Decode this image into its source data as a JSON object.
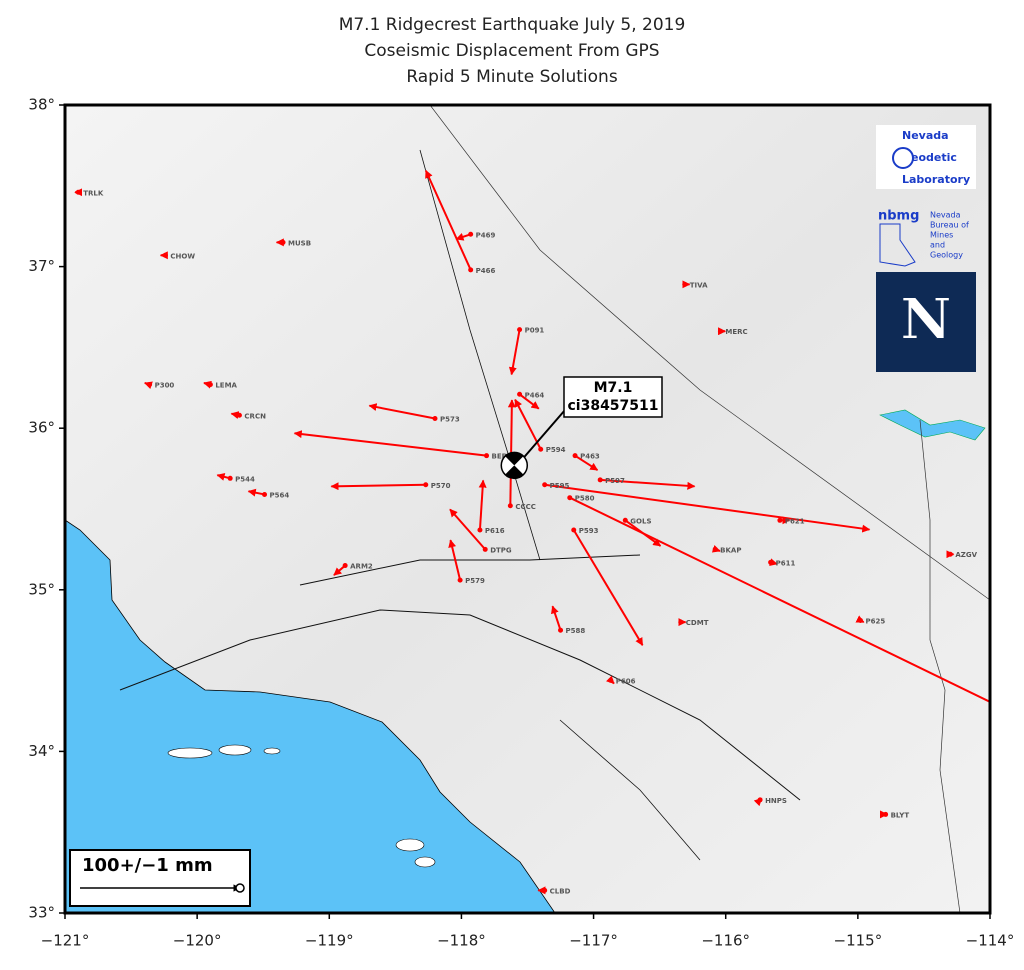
{
  "chart_data": {
    "type": "vector-map",
    "title": "M7.1 Ridgecrest Earthquake July 5, 2019",
    "subtitle": [
      "Coseismic Displacement From GPS",
      "Rapid 5 Minute Solutions"
    ],
    "xlim": [
      -121,
      -114
    ],
    "ylim": [
      33,
      38
    ],
    "xticks": [
      {
        "value": -121,
        "label": "−121°"
      },
      {
        "value": -120,
        "label": "−120°"
      },
      {
        "value": -119,
        "label": "−119°"
      },
      {
        "value": -118,
        "label": "−118°"
      },
      {
        "value": -117,
        "label": "−117°"
      },
      {
        "value": -116,
        "label": "−116°"
      },
      {
        "value": -115,
        "label": "−115°"
      },
      {
        "value": -114,
        "label": "−114°"
      }
    ],
    "yticks": [
      {
        "value": 33,
        "label": "33°"
      },
      {
        "value": 34,
        "label": "34°"
      },
      {
        "value": 35,
        "label": "35°"
      },
      {
        "value": 36,
        "label": "36°"
      },
      {
        "value": 37,
        "label": "37°"
      },
      {
        "value": 38,
        "label": "38°"
      }
    ],
    "color": "#ff0000",
    "event": {
      "label": "M7.1",
      "id": "ci38457511",
      "lon": -117.6,
      "lat": 35.77
    },
    "scale": {
      "label": "100+/−1 mm",
      "value": 100
    },
    "stations": [
      {
        "name": "P595",
        "lon": -117.37,
        "lat": 35.65,
        "de": 203,
        "dn": -28
      },
      {
        "name": "P580",
        "lon": -117.18,
        "lat": 35.57,
        "de": 284,
        "dn": -138
      },
      {
        "name": "P597",
        "lon": -116.95,
        "lat": 35.68,
        "de": 59,
        "dn": -4
      },
      {
        "name": "P593",
        "lon": -117.15,
        "lat": 35.37,
        "de": 43,
        "dn": -72
      },
      {
        "name": "P570",
        "lon": -118.27,
        "lat": 35.65,
        "de": -59,
        "dn": -1
      },
      {
        "name": "BEPK",
        "lon": -117.81,
        "lat": 35.83,
        "de": -120,
        "dn": 14
      },
      {
        "name": "P573",
        "lon": -118.2,
        "lat": 36.06,
        "de": -41,
        "dn": 8
      },
      {
        "name": "P466",
        "lon": -117.93,
        "lat": 36.98,
        "de": -28,
        "dn": 62
      },
      {
        "name": "P091",
        "lon": -117.56,
        "lat": 36.61,
        "de": -5,
        "dn": -28
      },
      {
        "name": "P464",
        "lon": -117.56,
        "lat": 36.21,
        "de": 12,
        "dn": -9
      },
      {
        "name": "P463",
        "lon": -117.14,
        "lat": 35.83,
        "de": 14,
        "dn": -9
      },
      {
        "name": "CCCC",
        "lon": -117.63,
        "lat": 35.52,
        "de": 1,
        "dn": 66
      },
      {
        "name": "P616",
        "lon": -117.86,
        "lat": 35.37,
        "de": 2,
        "dn": 31
      },
      {
        "name": "DTPG",
        "lon": -117.82,
        "lat": 35.25,
        "de": -22,
        "dn": 25
      },
      {
        "name": "P579",
        "lon": -118.01,
        "lat": 35.06,
        "de": -6,
        "dn": 25
      },
      {
        "name": "P594",
        "lon": -117.4,
        "lat": 35.87,
        "de": -16,
        "dn": 31
      },
      {
        "name": "GOLS",
        "lon": -116.76,
        "lat": 35.43,
        "de": 22,
        "dn": -16
      },
      {
        "name": "P621",
        "lon": -115.59,
        "lat": 35.43,
        "de": 6,
        "dn": 0
      },
      {
        "name": "CHOW",
        "lon": -120.24,
        "lat": 37.07,
        "de": -3,
        "dn": 0
      },
      {
        "name": "MUSB",
        "lon": -119.35,
        "lat": 37.15,
        "de": -4,
        "dn": 0
      },
      {
        "name": "P469",
        "lon": -117.93,
        "lat": 37.2,
        "de": -9,
        "dn": -3
      },
      {
        "name": "TIVA",
        "lon": -116.31,
        "lat": 36.89,
        "de": 3,
        "dn": 0
      },
      {
        "name": "MERC",
        "lon": -116.04,
        "lat": 36.6,
        "de": 3,
        "dn": 0
      },
      {
        "name": "BKAP",
        "lon": -116.08,
        "lat": 35.25,
        "de": 3,
        "dn": -1
      },
      {
        "name": "P611",
        "lon": -115.66,
        "lat": 35.17,
        "de": 4,
        "dn": -1
      },
      {
        "name": "AZGV",
        "lon": -114.3,
        "lat": 35.22,
        "de": 2,
        "dn": 0
      },
      {
        "name": "P625",
        "lon": -114.98,
        "lat": 34.81,
        "de": 2,
        "dn": -1
      },
      {
        "name": "HNPS",
        "lon": -115.74,
        "lat": 33.7,
        "de": 1,
        "dn": 1
      },
      {
        "name": "BLYT",
        "lon": -114.79,
        "lat": 33.61,
        "de": 1,
        "dn": 0
      },
      {
        "name": "TRLK",
        "lon": -120.9,
        "lat": 37.46,
        "de": -2,
        "dn": 0
      },
      {
        "name": "P300",
        "lon": -120.36,
        "lat": 36.27,
        "de": -3,
        "dn": 1
      },
      {
        "name": "LEMA",
        "lon": -119.9,
        "lat": 36.27,
        "de": -4,
        "dn": 1
      },
      {
        "name": "CRCN",
        "lon": -119.68,
        "lat": 36.08,
        "de": -5,
        "dn": 1
      },
      {
        "name": "P544",
        "lon": -119.75,
        "lat": 35.69,
        "de": -8,
        "dn": 2
      },
      {
        "name": "P564",
        "lon": -119.49,
        "lat": 35.59,
        "de": -10,
        "dn": 2
      },
      {
        "name": "ARM2",
        "lon": -118.88,
        "lat": 35.15,
        "de": -7,
        "dn": -6
      },
      {
        "name": "P588",
        "lon": -117.25,
        "lat": 34.75,
        "de": -5,
        "dn": 15
      },
      {
        "name": "CDMT",
        "lon": -116.34,
        "lat": 34.8,
        "de": 3,
        "dn": 0
      },
      {
        "name": "P606",
        "lon": -116.87,
        "lat": 34.44,
        "de": 2,
        "dn": -2
      },
      {
        "name": "CLBD",
        "lon": -117.37,
        "lat": 33.14,
        "de": -4,
        "dn": 0
      }
    ]
  },
  "logos": {
    "ngl": [
      "Nevada",
      "Geodetic",
      "Laboratory"
    ],
    "nbmg_mark": "nbmg",
    "nbmg": [
      "Nevada",
      "Bureau of",
      "Mines",
      "and",
      "Geology"
    ],
    "unr": "N"
  }
}
